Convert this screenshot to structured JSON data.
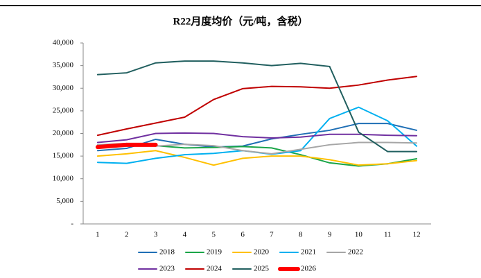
{
  "chart_data": {
    "type": "line",
    "title": "R22月度均价（元/吨，含税）",
    "categories": [
      "1",
      "2",
      "3",
      "4",
      "5",
      "6",
      "7",
      "8",
      "9",
      "10",
      "11",
      "12"
    ],
    "ylim": [
      0,
      40000
    ],
    "yticks": [
      {
        "value": 0,
        "label": "-"
      },
      {
        "value": 5000,
        "label": "5,000"
      },
      {
        "value": 10000,
        "label": "10,000"
      },
      {
        "value": 15000,
        "label": "15,000"
      },
      {
        "value": 20000,
        "label": "20,000"
      },
      {
        "value": 25000,
        "label": "25,000"
      },
      {
        "value": 30000,
        "label": "30,000"
      },
      {
        "value": 35000,
        "label": "35,000"
      },
      {
        "value": 40000,
        "label": "40,000"
      }
    ],
    "legend": "bottom",
    "series": [
      {
        "name": "2018",
        "color": "#1f6fb5",
        "values": [
          16200,
          16700,
          18700,
          17600,
          17000,
          17200,
          18800,
          19800,
          20700,
          22200,
          22200,
          20700
        ]
      },
      {
        "name": "2019",
        "color": "#1aa548",
        "values": [
          17300,
          17500,
          17300,
          16800,
          16900,
          17100,
          16800,
          15300,
          13500,
          12800,
          13300,
          14400
        ]
      },
      {
        "name": "2020",
        "color": "#ffc000",
        "values": [
          15000,
          15500,
          16200,
          14700,
          13000,
          14500,
          15000,
          15000,
          14200,
          13000,
          13300,
          14000
        ]
      },
      {
        "name": "2021",
        "color": "#00b0f0",
        "values": [
          13600,
          13400,
          14500,
          15300,
          15600,
          16200,
          15400,
          16200,
          23300,
          25800,
          22800,
          17200
        ]
      },
      {
        "name": "2022",
        "color": "#a6a6a6",
        "values": [
          17500,
          17800,
          17200,
          17600,
          17300,
          16200,
          15500,
          16500,
          17500,
          18000,
          18000,
          17900
        ]
      },
      {
        "name": "2023",
        "color": "#7030a0",
        "values": [
          18000,
          18600,
          20000,
          20100,
          20000,
          19300,
          19000,
          19200,
          19800,
          19800,
          19600,
          19500
        ]
      },
      {
        "name": "2024",
        "color": "#c00000",
        "values": [
          19600,
          21000,
          22300,
          23600,
          27500,
          29900,
          30400,
          30300,
          30000,
          30700,
          31800,
          32600
        ]
      },
      {
        "name": "2025",
        "color": "#215f5f",
        "values": [
          33000,
          33400,
          35600,
          36000,
          36000,
          35600,
          35000,
          35500,
          34800,
          20300,
          16000,
          16000
        ]
      },
      {
        "name": "2026",
        "color": "#ff0000",
        "values": [
          17000,
          17500,
          17500,
          null,
          null,
          null,
          null,
          null,
          null,
          null,
          null,
          null
        ]
      }
    ]
  }
}
